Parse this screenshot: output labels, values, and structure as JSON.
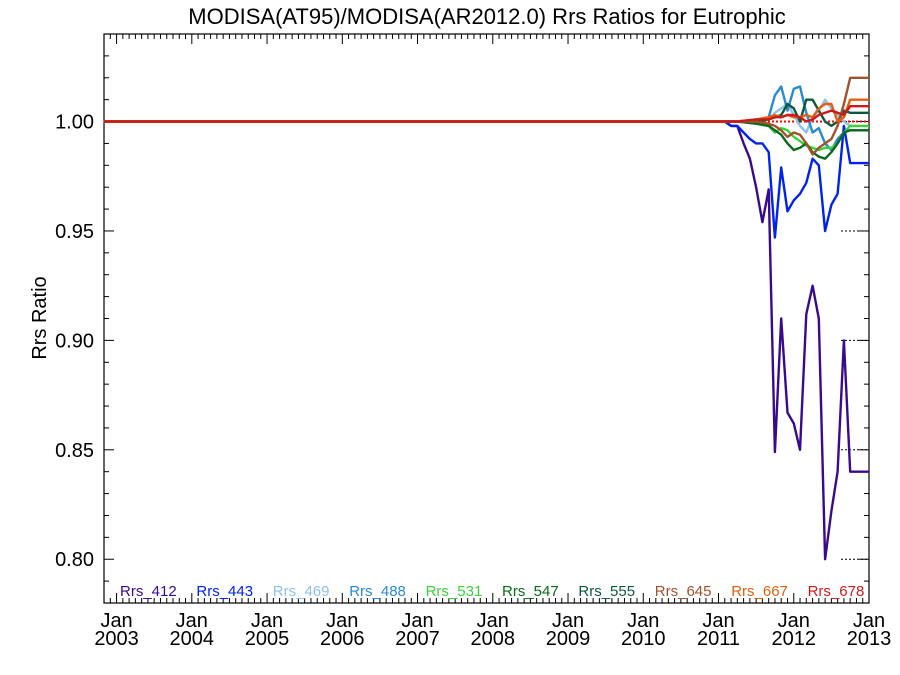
{
  "chart_data": {
    "type": "line",
    "title": "MODISA(AT95)/MODISA(AR2012.0)  Rrs Ratios for Eutrophic",
    "xlabel": "",
    "ylabel": "Rrs Ratio",
    "xlim": [
      2002.833,
      2013.0
    ],
    "ylim": [
      0.78,
      1.04
    ],
    "x_ticks": [
      {
        "x": 2003,
        "line1": "Jan",
        "line2": "2003"
      },
      {
        "x": 2004,
        "line1": "Jan",
        "line2": "2004"
      },
      {
        "x": 2005,
        "line1": "Jan",
        "line2": "2005"
      },
      {
        "x": 2006,
        "line1": "Jan",
        "line2": "2006"
      },
      {
        "x": 2007,
        "line1": "Jan",
        "line2": "2007"
      },
      {
        "x": 2008,
        "line1": "Jan",
        "line2": "2008"
      },
      {
        "x": 2009,
        "line1": "Jan",
        "line2": "2009"
      },
      {
        "x": 2010,
        "line1": "Jan",
        "line2": "2010"
      },
      {
        "x": 2011,
        "line1": "Jan",
        "line2": "2011"
      },
      {
        "x": 2012,
        "line1": "Jan",
        "line2": "2012"
      },
      {
        "x": 2013,
        "line1": "Jan",
        "line2": "2013"
      }
    ],
    "y_ticks": [
      {
        "value": 0.8,
        "label": "0.80"
      },
      {
        "value": 0.85,
        "label": "0.85"
      },
      {
        "value": 0.9,
        "label": "0.90"
      },
      {
        "value": 0.95,
        "label": "0.95"
      },
      {
        "value": 1.0,
        "label": "1.00"
      }
    ],
    "reference_line": {
      "y": 1.0,
      "color": "#ff0000",
      "style": "dotted"
    },
    "legend_position": "bottom",
    "series": [
      {
        "name": "Rrs_412",
        "color": "#3a0a8c",
        "x": [
          2002.83,
          2011.0,
          2011.083,
          2011.167,
          2011.25,
          2011.333,
          2011.417,
          2011.5,
          2011.583,
          2011.667,
          2011.75,
          2011.833,
          2011.917,
          2012.0,
          2012.083,
          2012.167,
          2012.25,
          2012.333,
          2012.417,
          2012.5,
          2012.583,
          2012.667,
          2012.75,
          2012.833,
          2012.917,
          2012.958,
          2013.0
        ],
        "y": [
          1.0,
          1.0,
          1.0,
          0.998,
          0.998,
          0.99,
          0.983,
          0.97,
          0.954,
          0.969,
          0.849,
          0.91,
          0.867,
          0.862,
          0.85,
          0.912,
          0.925,
          0.91,
          0.8,
          0.822,
          0.84,
          0.9,
          0.84,
          0.84,
          0.84,
          0.84,
          0.84
        ]
      },
      {
        "name": "Rrs_443",
        "color": "#0022ee",
        "x": [
          2002.83,
          2011.0,
          2011.083,
          2011.167,
          2011.25,
          2011.333,
          2011.417,
          2011.5,
          2011.583,
          2011.667,
          2011.75,
          2011.833,
          2011.917,
          2012.0,
          2012.083,
          2012.167,
          2012.25,
          2012.333,
          2012.417,
          2012.5,
          2012.583,
          2012.667,
          2012.75,
          2012.833,
          2012.917,
          2013.0
        ],
        "y": [
          1.0,
          1.0,
          1.0,
          0.998,
          0.998,
          0.995,
          0.992,
          0.99,
          0.99,
          0.986,
          0.947,
          0.979,
          0.959,
          0.964,
          0.967,
          0.972,
          0.983,
          0.98,
          0.95,
          0.962,
          0.967,
          0.998,
          0.981,
          0.981,
          0.981,
          0.981
        ]
      },
      {
        "name": "Rrs_469",
        "color": "#8ec2ec",
        "x": [
          2002.83,
          2011.0,
          2011.25,
          2011.5,
          2011.667,
          2011.75,
          2011.833,
          2011.917,
          2012.0,
          2012.083,
          2012.167,
          2012.25,
          2012.333,
          2012.417,
          2012.5,
          2012.583,
          2012.667,
          2012.75,
          2013.0
        ],
        "y": [
          1.0,
          1.0,
          1.0,
          1.0,
          1.001,
          1.004,
          1.006,
          1.008,
          1.003,
          0.998,
          0.995,
          1.002,
          1.005,
          1.01,
          1.006,
          1.003,
          1.0,
          0.998,
          0.998
        ]
      },
      {
        "name": "Rrs_488",
        "color": "#2a8ad0",
        "x": [
          2002.83,
          2011.0,
          2011.25,
          2011.5,
          2011.667,
          2011.75,
          2011.833,
          2011.917,
          2012.0,
          2012.083,
          2012.167,
          2012.25,
          2012.333,
          2012.417,
          2012.5,
          2012.583,
          2012.667,
          2012.75,
          2013.0
        ],
        "y": [
          1.0,
          1.0,
          1.0,
          1.0,
          1.002,
          1.012,
          1.016,
          1.005,
          1.015,
          1.016,
          1.004,
          0.995,
          0.997,
          0.99,
          0.987,
          0.992,
          0.995,
          0.996,
          0.996
        ]
      },
      {
        "name": "Rrs_531",
        "color": "#3ad23a",
        "x": [
          2002.83,
          2011.0,
          2011.25,
          2011.5,
          2011.667,
          2011.75,
          2011.833,
          2011.917,
          2012.0,
          2012.083,
          2012.167,
          2012.25,
          2012.333,
          2012.417,
          2012.5,
          2012.583,
          2012.667,
          2012.75,
          2013.0
        ],
        "y": [
          1.0,
          1.0,
          1.0,
          0.999,
          0.998,
          0.995,
          0.997,
          0.996,
          0.993,
          0.991,
          0.989,
          0.988,
          0.987,
          0.988,
          0.988,
          0.99,
          0.995,
          0.998,
          0.998
        ]
      },
      {
        "name": "Rrs_547",
        "color": "#0a6a1a",
        "x": [
          2002.83,
          2011.0,
          2011.25,
          2011.5,
          2011.667,
          2011.75,
          2011.833,
          2011.917,
          2012.0,
          2012.083,
          2012.167,
          2012.25,
          2012.333,
          2012.417,
          2012.5,
          2012.583,
          2012.667,
          2012.75,
          2013.0
        ],
        "y": [
          1.0,
          1.0,
          1.0,
          0.999,
          0.998,
          0.996,
          0.994,
          0.99,
          0.987,
          0.988,
          0.99,
          0.986,
          0.984,
          0.983,
          0.986,
          0.99,
          0.995,
          0.996,
          0.996
        ]
      },
      {
        "name": "Rrs_555",
        "color": "#0c5a3a",
        "x": [
          2002.83,
          2011.0,
          2011.25,
          2011.5,
          2011.667,
          2011.75,
          2011.833,
          2011.917,
          2012.0,
          2012.083,
          2012.167,
          2012.25,
          2012.333,
          2012.417,
          2012.5,
          2012.583,
          2012.667,
          2012.75,
          2013.0
        ],
        "y": [
          1.0,
          1.0,
          1.0,
          1.0,
          1.001,
          1.002,
          1.003,
          1.008,
          1.006,
          1.0,
          1.01,
          1.01,
          1.005,
          1.0,
          0.998,
          1.0,
          1.005,
          1.004,
          1.004
        ]
      },
      {
        "name": "Rrs_645",
        "color": "#a0522d",
        "x": [
          2002.83,
          2011.0,
          2011.25,
          2011.5,
          2011.667,
          2011.75,
          2011.833,
          2011.917,
          2012.0,
          2012.083,
          2012.167,
          2012.25,
          2012.333,
          2012.417,
          2012.5,
          2012.583,
          2012.667,
          2012.75,
          2013.0
        ],
        "y": [
          1.0,
          1.0,
          1.0,
          1.0,
          0.999,
          0.998,
          0.996,
          0.993,
          0.995,
          0.994,
          0.99,
          0.985,
          0.988,
          0.99,
          0.992,
          0.998,
          1.008,
          1.02,
          1.02
        ]
      },
      {
        "name": "Rrs_667",
        "color": "#e06010",
        "x": [
          2002.83,
          2011.0,
          2011.25,
          2011.5,
          2011.667,
          2011.75,
          2011.833,
          2011.917,
          2012.0,
          2012.083,
          2012.167,
          2012.25,
          2012.333,
          2012.417,
          2012.5,
          2012.583,
          2012.667,
          2012.75,
          2013.0
        ],
        "y": [
          1.0,
          1.0,
          1.0,
          1.001,
          1.002,
          1.003,
          1.002,
          1.003,
          1.002,
          1.002,
          1.003,
          1.002,
          1.006,
          1.008,
          1.008,
          1.0,
          1.002,
          1.01,
          1.01
        ]
      },
      {
        "name": "Rrs_678",
        "color": "#cc1a1a",
        "x": [
          2002.83,
          2011.0,
          2011.25,
          2011.5,
          2011.667,
          2011.75,
          2011.833,
          2011.917,
          2012.0,
          2012.083,
          2012.167,
          2012.25,
          2012.333,
          2012.417,
          2012.5,
          2012.583,
          2012.667,
          2012.75,
          2013.0
        ],
        "y": [
          1.0,
          1.0,
          1.0,
          1.001,
          1.001,
          1.002,
          1.002,
          1.003,
          1.003,
          1.002,
          1.0,
          1.001,
          1.003,
          1.004,
          1.005,
          1.004,
          1.003,
          1.007,
          1.007
        ]
      }
    ]
  }
}
